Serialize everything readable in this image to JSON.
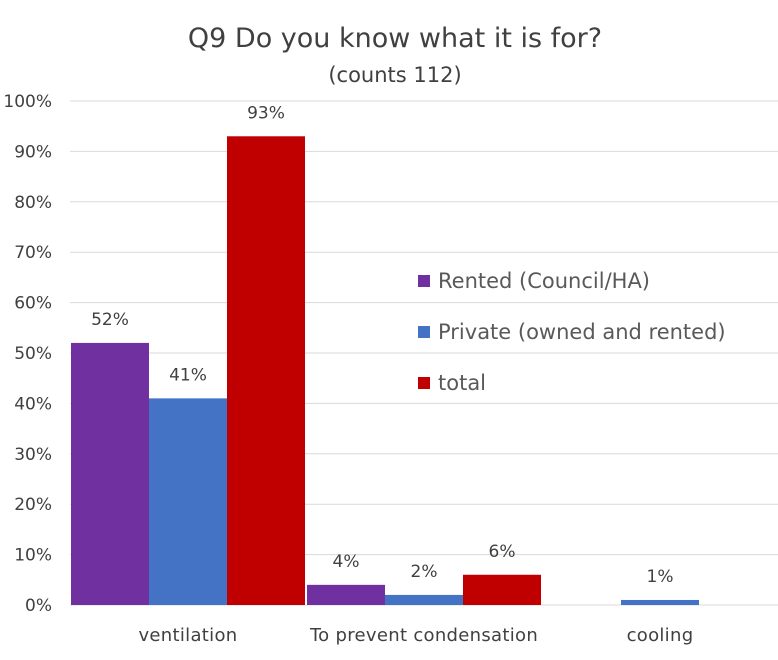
{
  "chart_data": {
    "type": "bar",
    "title": "Q9 Do you know what it is for?",
    "subtitle": "(counts 112)",
    "categories": [
      "ventilation",
      "To prevent condensation",
      "cooling"
    ],
    "series": [
      {
        "name": "Rented (Council/HA)",
        "color": "#7030a0",
        "values": [
          52,
          4,
          0
        ],
        "labels": [
          "52%",
          "4%",
          null
        ]
      },
      {
        "name": "Private (owned and rented)",
        "color": "#4472c4",
        "values": [
          41,
          2,
          1
        ],
        "labels": [
          "41%",
          "2%",
          "1%"
        ]
      },
      {
        "name": "total",
        "color": "#c00000",
        "values": [
          93,
          6,
          0
        ],
        "labels": [
          "93%",
          "6%",
          null
        ]
      }
    ],
    "yticks": [
      "0%",
      "10%",
      "20%",
      "30%",
      "40%",
      "50%",
      "60%",
      "70%",
      "80%",
      "90%",
      "100%"
    ],
    "ylim": [
      0,
      100
    ],
    "grid": true,
    "legend_position": "center-right"
  }
}
